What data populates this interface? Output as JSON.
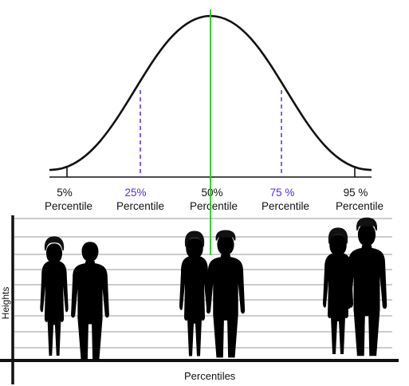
{
  "colors": {
    "curve": "#111111",
    "median_line": "#22cc22",
    "quartile_dash": "#5a2bd8",
    "accent_text": "#5a2bd8"
  },
  "percentiles": [
    {
      "value": "5%",
      "word": "Percentile",
      "accent": false
    },
    {
      "value": "25%",
      "word": "Percentile",
      "accent": true
    },
    {
      "value": "50%",
      "word": "Percentile",
      "accent": false
    },
    {
      "value": "75 %",
      "word": "Percentile",
      "accent": true
    },
    {
      "value": "95 %",
      "word": "Percentile",
      "accent": false
    }
  ],
  "axes": {
    "x_label": "Percentiles",
    "y_label": "Heights"
  },
  "figures": [
    {
      "group": "5th percentile",
      "name": "woman-figure-5",
      "type": "woman"
    },
    {
      "group": "5th percentile",
      "name": "man-figure-5",
      "type": "man"
    },
    {
      "group": "50th percentile",
      "name": "woman-figure-50",
      "type": "woman"
    },
    {
      "group": "50th percentile",
      "name": "man-figure-50",
      "type": "man"
    },
    {
      "group": "95th percentile",
      "name": "woman-figure-95",
      "type": "woman"
    },
    {
      "group": "95th percentile",
      "name": "man-figure-95",
      "type": "man"
    }
  ]
}
